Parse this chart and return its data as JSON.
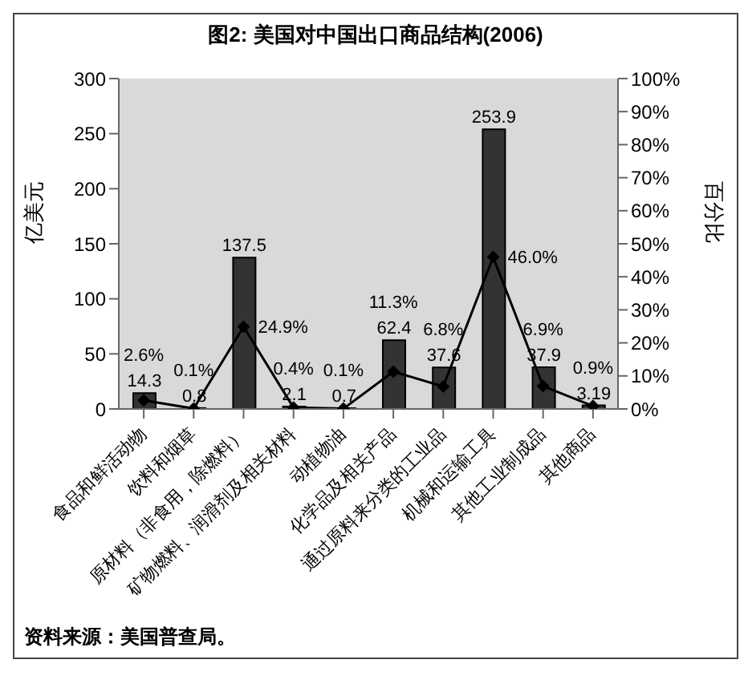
{
  "chart_data": {
    "type": "bar",
    "title": "图2: 美国对中国出口商品结构(2006)",
    "categories": [
      "食品和鲜活动物",
      "饮料和烟草",
      "原材料（非食用，除燃料）",
      "矿物燃料、润滑剂及相关材料",
      "动植物油",
      "化学品及相关产品",
      "通过原料来分类的工业品",
      "机械和运输工具",
      "其他工业制成品",
      "其他商品"
    ],
    "series": [
      {
        "color": "#333333",
        "values": [
          14.3,
          0.8,
          137.5,
          2.1,
          0.7,
          62.4,
          37.6,
          253.9,
          37.9,
          3.19
        ],
        "value_labels": [
          "14.3",
          "0.8",
          "137.5",
          "2.1",
          "0.7",
          "62.4",
          "37.6",
          "253.9",
          "37.9",
          "3.19"
        ]
      },
      {
        "type": "line",
        "axis": "y2",
        "color": "#000000",
        "marker": "diamond",
        "values": [
          2.6,
          0.1,
          24.9,
          0.4,
          0.1,
          11.3,
          6.8,
          46.0,
          6.9,
          0.9
        ],
        "value_labels": [
          "2.6%",
          "0.1%",
          "24.9%",
          "0.4%",
          "0.1%",
          "11.3%",
          "6.8%",
          "46.0%",
          "6.9%",
          "0.9%"
        ]
      }
    ],
    "ylabel": "亿美元",
    "y2label": "百分比",
    "ylim": [
      0,
      300
    ],
    "yticks": [
      0,
      50,
      100,
      150,
      200,
      250,
      300
    ],
    "y2lim": [
      0,
      100
    ],
    "y2ticks": [
      {
        "value": 0,
        "label": "0%"
      },
      {
        "value": 10,
        "label": "10%"
      },
      {
        "value": 20,
        "label": "20%"
      },
      {
        "value": 30,
        "label": "30%"
      },
      {
        "value": 40,
        "label": "40%"
      },
      {
        "value": 50,
        "label": "50%"
      },
      {
        "value": 60,
        "label": "60%"
      },
      {
        "value": 70,
        "label": "70%"
      },
      {
        "value": 80,
        "label": "80%"
      },
      {
        "value": 90,
        "label": "90%"
      },
      {
        "value": 100,
        "label": "100%"
      }
    ],
    "annotations": [
      "资料来源：美国普查局。"
    ]
  }
}
